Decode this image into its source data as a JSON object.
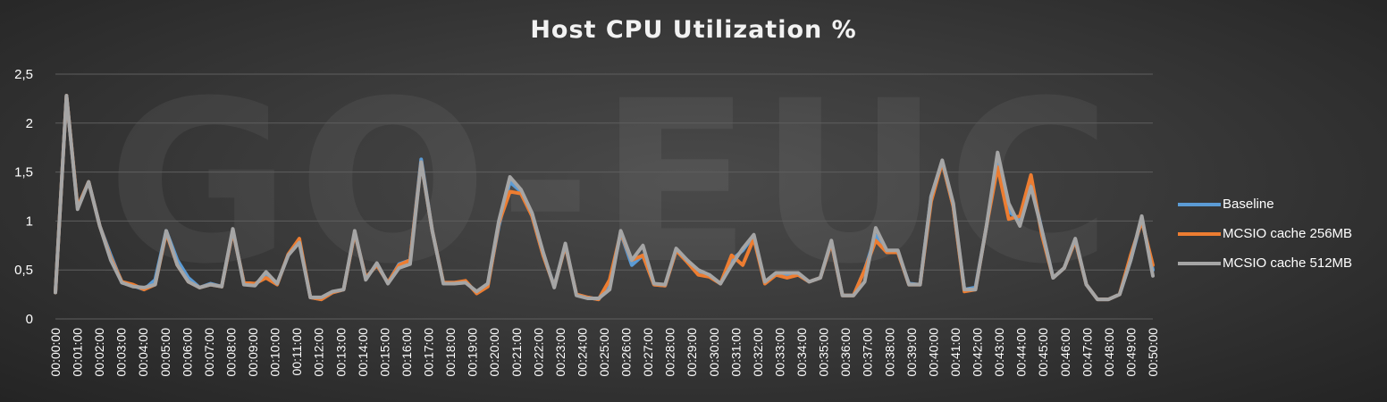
{
  "colors": {
    "baseline": "#5b9bd5",
    "mcsio256": "#ed7d31",
    "mcsio512": "#a5a5a5",
    "grid": "#5e5e5e",
    "text": "#ffffff"
  },
  "chart_data": {
    "type": "line",
    "title": "Host CPU Utilization %",
    "watermark": "GO-EUC",
    "xlabel": "",
    "ylabel": "",
    "ylim": [
      0,
      2.5
    ],
    "yticks": [
      "0",
      "0,5",
      "1",
      "1,5",
      "2",
      "2,5"
    ],
    "ytick_values": [
      0,
      0.5,
      1,
      1.5,
      2,
      2.5
    ],
    "grid": true,
    "legend_position": "right",
    "x_tick_labels": [
      "00:00:00",
      "00:01:00",
      "00:02:00",
      "00:03:00",
      "00:04:00",
      "00:05:00",
      "00:06:00",
      "00:07:00",
      "00:08:00",
      "00:09:00",
      "00:10:00",
      "00:11:00",
      "00:12:00",
      "00:13:00",
      "00:14:00",
      "00:15:00",
      "00:16:00",
      "00:17:00",
      "00:18:00",
      "00:19:00",
      "00:20:00",
      "00:21:00",
      "00:22:00",
      "00:23:00",
      "00:24:00",
      "00:25:00",
      "00:26:00",
      "00:27:00",
      "00:28:00",
      "00:29:00",
      "00:30:00",
      "00:31:00",
      "00:32:00",
      "00:33:00",
      "00:34:00",
      "00:35:00",
      "00:36:00",
      "00:37:00",
      "00:38:00",
      "00:39:00",
      "00:40:00",
      "00:41:00",
      "00:42:00",
      "00:43:00",
      "00:44:00",
      "00:45:00",
      "00:46:00",
      "00:47:00",
      "00:48:00",
      "00:49:00",
      "00:50:00"
    ],
    "sample_interval_seconds": 30,
    "series": [
      {
        "name": "Baseline",
        "color": "#5b9bd5",
        "values": [
          0.27,
          2.28,
          1.14,
          1.4,
          0.95,
          0.65,
          0.37,
          0.34,
          0.3,
          0.4,
          0.9,
          0.6,
          0.42,
          0.32,
          0.36,
          0.33,
          0.9,
          0.37,
          0.35,
          0.45,
          0.36,
          0.65,
          0.8,
          0.22,
          0.2,
          0.27,
          0.3,
          0.88,
          0.42,
          0.55,
          0.37,
          0.56,
          0.6,
          1.63,
          0.9,
          0.37,
          0.37,
          0.38,
          0.27,
          0.35,
          0.95,
          1.4,
          1.3,
          1.05,
          0.65,
          0.34,
          0.75,
          0.25,
          0.22,
          0.2,
          0.35,
          0.88,
          0.55,
          0.65,
          0.35,
          0.34,
          0.7,
          0.6,
          0.47,
          0.45,
          0.36,
          0.6,
          0.7,
          0.85,
          0.37,
          0.45,
          0.45,
          0.45,
          0.38,
          0.42,
          0.78,
          0.24,
          0.24,
          0.5,
          0.85,
          0.7,
          0.68,
          0.36,
          0.35,
          1.25,
          1.6,
          1.15,
          0.3,
          0.32,
          0.95,
          1.65,
          1.1,
          1.0,
          1.4,
          0.9,
          0.42,
          0.52,
          0.8,
          0.35,
          0.2,
          0.2,
          0.25,
          0.6,
          1.02,
          0.5
        ]
      },
      {
        "name": "MCSIO cache 256MB",
        "color": "#ed7d31",
        "values": [
          0.27,
          2.28,
          1.14,
          1.4,
          0.95,
          0.62,
          0.38,
          0.35,
          0.3,
          0.35,
          0.88,
          0.55,
          0.38,
          0.32,
          0.35,
          0.33,
          0.9,
          0.37,
          0.36,
          0.42,
          0.35,
          0.66,
          0.82,
          0.22,
          0.2,
          0.27,
          0.3,
          0.88,
          0.42,
          0.55,
          0.37,
          0.55,
          0.6,
          1.6,
          0.9,
          0.37,
          0.37,
          0.39,
          0.26,
          0.33,
          0.98,
          1.3,
          1.28,
          1.05,
          0.65,
          0.33,
          0.75,
          0.25,
          0.22,
          0.2,
          0.4,
          0.88,
          0.6,
          0.65,
          0.35,
          0.34,
          0.7,
          0.58,
          0.45,
          0.43,
          0.36,
          0.65,
          0.55,
          0.82,
          0.36,
          0.45,
          0.42,
          0.45,
          0.38,
          0.42,
          0.78,
          0.24,
          0.24,
          0.5,
          0.8,
          0.68,
          0.68,
          0.35,
          0.35,
          1.2,
          1.6,
          1.15,
          0.28,
          0.3,
          0.95,
          1.55,
          1.02,
          1.05,
          1.47,
          0.85,
          0.42,
          0.52,
          0.8,
          0.35,
          0.2,
          0.2,
          0.25,
          0.65,
          1.0,
          0.55
        ]
      },
      {
        "name": "MCSIO cache 512MB",
        "color": "#a5a5a5",
        "values": [
          0.27,
          2.28,
          1.12,
          1.4,
          0.95,
          0.6,
          0.37,
          0.33,
          0.32,
          0.35,
          0.9,
          0.55,
          0.38,
          0.32,
          0.35,
          0.33,
          0.92,
          0.35,
          0.34,
          0.48,
          0.36,
          0.65,
          0.78,
          0.22,
          0.22,
          0.28,
          0.3,
          0.9,
          0.4,
          0.57,
          0.36,
          0.52,
          0.56,
          1.6,
          0.9,
          0.36,
          0.36,
          0.37,
          0.28,
          0.36,
          1.0,
          1.45,
          1.32,
          1.08,
          0.68,
          0.32,
          0.77,
          0.24,
          0.21,
          0.21,
          0.3,
          0.9,
          0.6,
          0.75,
          0.36,
          0.35,
          0.72,
          0.6,
          0.5,
          0.45,
          0.36,
          0.55,
          0.72,
          0.86,
          0.38,
          0.47,
          0.47,
          0.47,
          0.38,
          0.42,
          0.8,
          0.24,
          0.24,
          0.38,
          0.93,
          0.7,
          0.7,
          0.35,
          0.35,
          1.25,
          1.62,
          1.18,
          0.3,
          0.3,
          0.95,
          1.7,
          1.18,
          0.95,
          1.35,
          0.9,
          0.42,
          0.52,
          0.82,
          0.35,
          0.2,
          0.2,
          0.25,
          0.6,
          1.05,
          0.44
        ]
      }
    ]
  }
}
